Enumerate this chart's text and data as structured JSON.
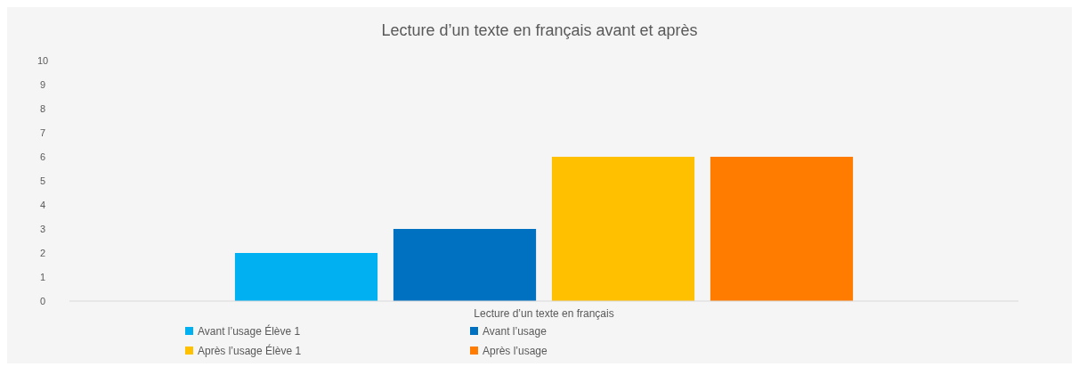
{
  "chart_data": {
    "type": "bar",
    "title": "Lecture d’un texte en français avant et après",
    "categories": [
      "Lecture d’un texte en français"
    ],
    "ylim": [
      0,
      10
    ],
    "yticks": [
      0,
      1,
      2,
      3,
      4,
      5,
      6,
      7,
      8,
      9,
      10
    ],
    "grid": false,
    "legend": "bottom",
    "series": [
      {
        "name": "Avant l’usage Élève 1",
        "color": "#00b0f0",
        "values": [
          2
        ]
      },
      {
        "name": "Avant l’usage",
        "color": "#0070c0",
        "values": [
          3
        ]
      },
      {
        "name": "Après l’usage Élève 1",
        "color": "#ffc000",
        "values": [
          6
        ]
      },
      {
        "name": "Après l’usage",
        "color": "#ff7c00",
        "values": [
          6
        ]
      }
    ]
  }
}
